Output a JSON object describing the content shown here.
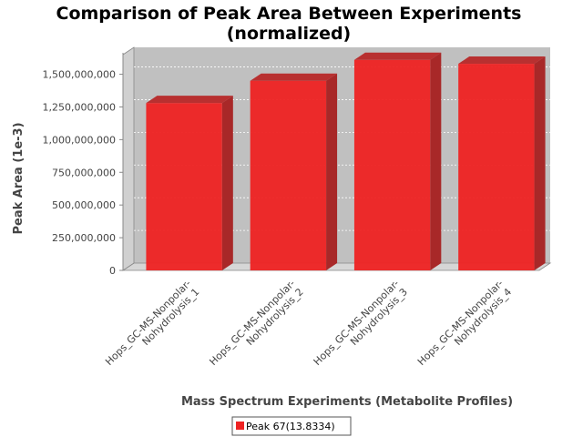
{
  "chart_data": {
    "type": "bar",
    "title": "Comparison of Peak Area Between Experiments",
    "subtitle": "(normalized)",
    "xlabel": "Mass Spectrum Experiments (Metabolite Profiles)",
    "ylabel": "Peak Area (1e-3)",
    "categories": [
      [
        "Hops_GC-MS-Nonpolar-",
        "Nohydrolysis_1"
      ],
      [
        "Hops_GC-MS-Nonpolar-",
        "Nohydrolysis_2"
      ],
      [
        "Hops_GC-MS-Nonpolar-",
        "Nohydrolysis_3"
      ],
      [
        "Hops_GC-MS-Nonpolar-",
        "Nohydrolysis_4"
      ]
    ],
    "series": [
      {
        "name": "Peak 67(13.8334)",
        "values": [
          1280000000,
          1450000000,
          1610000000,
          1580000000
        ],
        "color": "#ee2222"
      }
    ],
    "ylim": [
      0,
      1650000000
    ],
    "yticks": [
      0,
      250000000,
      500000000,
      750000000,
      1000000000,
      1250000000,
      1500000000
    ],
    "ytick_labels": [
      "0",
      "250,000,000",
      "500,000,000",
      "750,000,000",
      "1,000,000,000",
      "1,250,000,000",
      "1,500,000,000"
    ],
    "grid": true,
    "three_d": true,
    "legend_position": "bottom",
    "plot_background": "#c0c0c0"
  }
}
